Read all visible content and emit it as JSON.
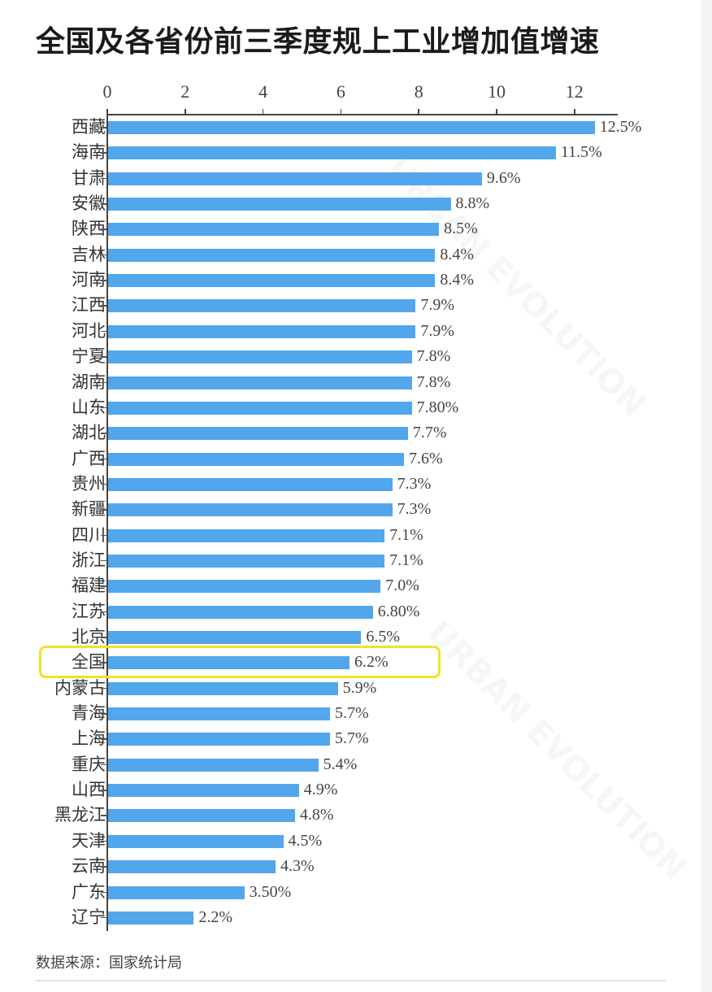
{
  "title": "全国及各省份前三季度规上工业增加值增速",
  "source": "数据来源：国家统计局",
  "watermark": "URBAN EVOLUTION",
  "colors": {
    "bar": "#52a6ec",
    "highlight": "#f2e12a",
    "axis": "#444444"
  },
  "highlighted_category": "全国",
  "chart_data": {
    "type": "bar",
    "orientation": "horizontal",
    "title": "全国及各省份前三季度规上工业增加值增速",
    "xlabel": "",
    "ylabel": "",
    "xlim": [
      0,
      13
    ],
    "x_ticks": [
      "0",
      "2",
      "4",
      "6",
      "8",
      "10",
      "12"
    ],
    "x_axis_position": "top",
    "grid": false,
    "legend": null,
    "categories": [
      "西藏",
      "海南",
      "甘肃",
      "安徽",
      "陕西",
      "吉林",
      "河南",
      "江西",
      "河北",
      "宁夏",
      "湖南",
      "山东",
      "湖北",
      "广西",
      "贵州",
      "新疆",
      "四川",
      "浙江",
      "福建",
      "江苏",
      "北京",
      "全国",
      "内蒙古",
      "青海",
      "上海",
      "重庆",
      "山西",
      "黑龙江",
      "天津",
      "云南",
      "广东",
      "辽宁"
    ],
    "values": [
      12.5,
      11.5,
      9.6,
      8.8,
      8.5,
      8.4,
      8.4,
      7.9,
      7.9,
      7.8,
      7.8,
      7.8,
      7.7,
      7.6,
      7.3,
      7.3,
      7.1,
      7.1,
      7.0,
      6.8,
      6.5,
      6.2,
      5.9,
      5.7,
      5.7,
      5.4,
      4.9,
      4.8,
      4.5,
      4.3,
      3.5,
      2.2
    ],
    "value_labels": [
      "12.5%",
      "11.5%",
      "9.6%",
      "8.8%",
      "8.5%",
      "8.4%",
      "8.4%",
      "7.9%",
      "7.9%",
      "7.8%",
      "7.8%",
      "7.80%",
      "7.7%",
      "7.6%",
      "7.3%",
      "7.3%",
      "7.1%",
      "7.1%",
      "7.0%",
      "6.80%",
      "6.5%",
      "6.2%",
      "5.9%",
      "5.7%",
      "5.7%",
      "5.4%",
      "4.9%",
      "4.8%",
      "4.5%",
      "4.3%",
      "3.50%",
      "2.2%"
    ],
    "annotations": [
      {
        "type": "highlight-box",
        "category": "全国"
      }
    ],
    "source": "数据来源：国家统计局"
  }
}
